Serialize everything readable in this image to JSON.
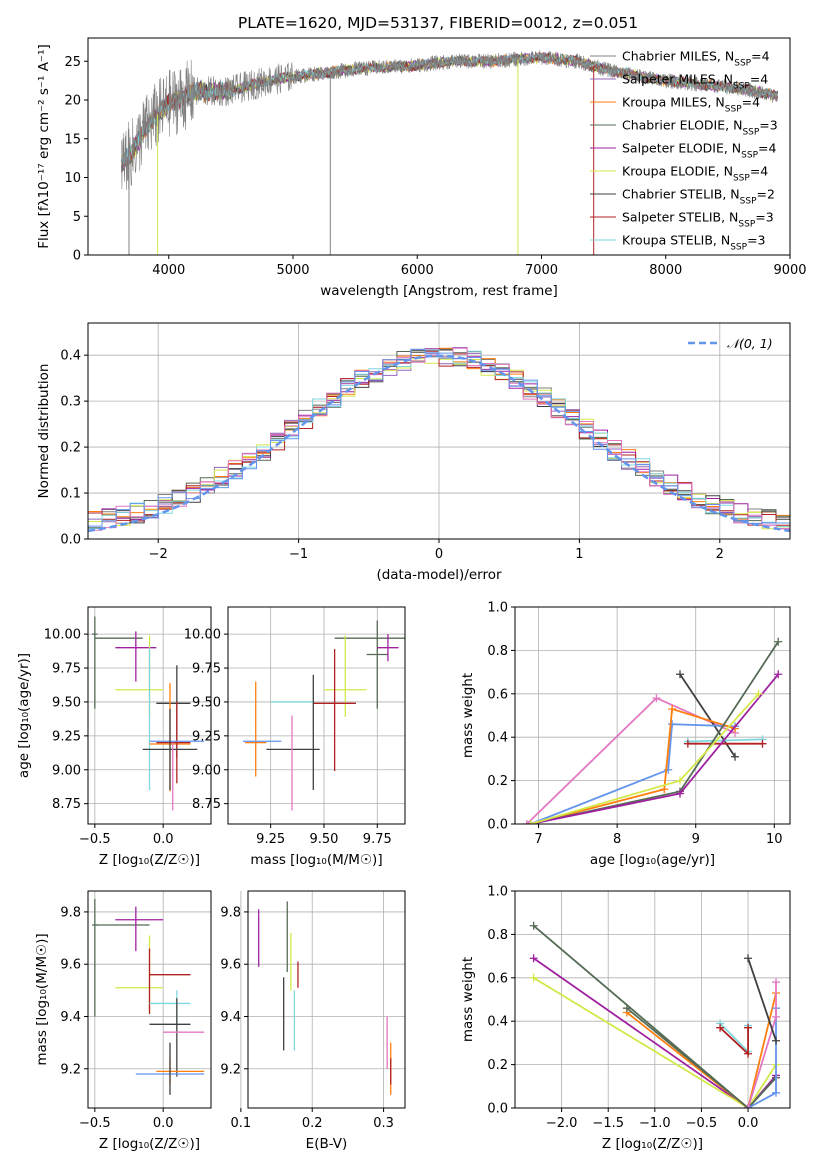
{
  "colors": {
    "Chabrier MILES": "#808080",
    "Salpeter MILES": "#9467bd",
    "Kroupa MILES": "#ff7f0e",
    "Chabrier ELODIE": "#556b55",
    "Salpeter ELODIE": "#a020a0",
    "Kroupa ELODIE": "#d4e84a",
    "Chabrier STELIB": "#404040",
    "Salpeter STELIB": "#b22222",
    "Kroupa STELIB": "#7fd8e0",
    "pink": "#e377c2",
    "blue": "#6495ed"
  },
  "chart_data": [
    {
      "id": "spectrum",
      "type": "line",
      "title": "PLATE=1620, MJD=53137, FIBERID=0012, z=0.051",
      "xlabel": "wavelength [Angstrom, rest frame]",
      "ylabel": "Flux [fλ10⁻¹⁷ erg cm⁻² s⁻¹ A⁻¹]",
      "xlim": [
        3350,
        9000
      ],
      "ylim": [
        0,
        28
      ],
      "xticks": [
        "4000",
        "5000",
        "6000",
        "7000",
        "8000",
        "9000"
      ],
      "yticks": [
        "0",
        "5",
        "10",
        "15",
        "20",
        "25"
      ],
      "continuum": {
        "x": [
          3620,
          3700,
          3800,
          3900,
          4000,
          4200,
          4500,
          4800,
          5000,
          5500,
          6000,
          6300,
          6600,
          7000,
          7300,
          7500,
          7800,
          8000,
          8300,
          8600,
          8900
        ],
        "y": [
          12,
          13,
          16,
          18,
          19.5,
          21,
          21.2,
          22.5,
          23,
          24,
          24.5,
          25,
          25,
          25.5,
          25,
          24,
          23,
          22.5,
          22,
          21.5,
          20.5
        ]
      },
      "legend": [
        {
          "label": "Chabrier MILES, N",
          "sub": "SSP",
          "tail": "=4"
        },
        {
          "label": "Salpeter MILES, N",
          "sub": "SSP",
          "tail": "=4"
        },
        {
          "label": "Kroupa MILES, N",
          "sub": "SSP",
          "tail": "=4"
        },
        {
          "label": "Chabrier ELODIE, N",
          "sub": "SSP",
          "tail": "=3"
        },
        {
          "label": "Salpeter ELODIE, N",
          "sub": "SSP",
          "tail": "=4"
        },
        {
          "label": "Kroupa ELODIE, N",
          "sub": "SSP",
          "tail": "=4"
        },
        {
          "label": "Chabrier STELIB, N",
          "sub": "SSP",
          "tail": "=2"
        },
        {
          "label": "Salpeter STELIB, N",
          "sub": "SSP",
          "tail": "=3"
        },
        {
          "label": "Kroupa STELIB, N",
          "sub": "SSP",
          "tail": "=3"
        }
      ]
    },
    {
      "id": "residuals",
      "type": "line",
      "xlabel": "(data-model)/error",
      "ylabel": "Normed distribution",
      "xlim": [
        -2.5,
        2.5
      ],
      "ylim": [
        0,
        0.47
      ],
      "xticks": [
        "−2",
        "−1",
        "0",
        "1",
        "2"
      ],
      "yticks": [
        "0.0",
        "0.1",
        "0.2",
        "0.3",
        "0.4"
      ],
      "legend": "𝒩(0, 1)",
      "gaussian": {
        "mu": 0,
        "sigma": 1
      }
    },
    {
      "id": "age_vs_Z",
      "type": "scatter",
      "xlabel": "Z [log₁₀(Z/Z☉)]",
      "ylabel": "age  [log₁₀(age/yr)]",
      "xlim": [
        -0.55,
        0.35
      ],
      "ylim": [
        8.6,
        10.2
      ],
      "xticks": [
        "−0.5",
        "0.0"
      ],
      "yticks": [
        "8.75",
        "9.00",
        "9.25",
        "9.50",
        "9.75",
        "10.00"
      ],
      "points": [
        {
          "x": -0.5,
          "xe": [
            0.02,
            0.02
          ],
          "y": 10.0,
          "ye": [
            0.55,
            0.13
          ],
          "color": "Chabrier ELODIE"
        },
        {
          "x": -0.5,
          "xe": [
            0.0,
            0.35
          ],
          "y": 9.97,
          "ye": [
            0,
            0
          ],
          "color": "Chabrier ELODIE"
        },
        {
          "x": -0.2,
          "xe": [
            0.15,
            0.15
          ],
          "y": 9.9,
          "ye": [
            0.25,
            0.12
          ],
          "color": "Salpeter ELODIE"
        },
        {
          "x": -0.1,
          "xe": [
            0.25,
            0.1
          ],
          "y": 9.59,
          "ye": [
            0.2,
            0.4
          ],
          "color": "Kroupa ELODIE"
        },
        {
          "x": -0.1,
          "xe": [
            0.0,
            0.0
          ],
          "y": 9.3,
          "ye": [
            0.45,
            0.6
          ],
          "color": "Kroupa STELIB"
        },
        {
          "x": 0.1,
          "xe": [
            0.15,
            0.1
          ],
          "y": 9.49,
          "ye": [
            0.4,
            0.28
          ],
          "color": "Chabrier STELIB"
        },
        {
          "x": 0.05,
          "xe": [
            0.15,
            0.15
          ],
          "y": 9.19,
          "ye": [
            0.35,
            0.45
          ],
          "color": "Kroupa MILES"
        },
        {
          "x": 0.1,
          "xe": [
            0.15,
            0.1
          ],
          "y": 9.2,
          "ye": [
            0.3,
            0.3
          ],
          "color": "Salpeter STELIB"
        },
        {
          "x": 0.1,
          "xe": [
            0.2,
            0.2
          ],
          "y": 9.21,
          "ye": [
            0,
            0
          ],
          "color": "blue"
        },
        {
          "x": 0.05,
          "xe": [
            0.2,
            0.2
          ],
          "y": 9.15,
          "ye": [
            0.3,
            0.3
          ],
          "color": "Chabrier STELIB"
        },
        {
          "x": 0.07,
          "xe": [
            0,
            0
          ],
          "y": 9.1,
          "ye": [
            0.4,
            0.1
          ],
          "color": "pink"
        }
      ]
    },
    {
      "id": "age_vs_mass",
      "type": "scatter",
      "xlabel": "mass [log₁₀(M/M☉)]",
      "xlim": [
        9.05,
        9.88
      ],
      "ylim": [
        8.6,
        10.2
      ],
      "xticks": [
        "9.25",
        "9.50",
        "9.75"
      ],
      "yticks": [
        "8.75",
        "9.00",
        "9.25",
        "9.50",
        "9.75",
        "10.00"
      ],
      "points": [
        {
          "x": 9.75,
          "xe": [
            0.2,
            0.15
          ],
          "y": 9.97,
          "ye": [
            0,
            0
          ],
          "color": "Chabrier ELODIE"
        },
        {
          "x": 9.75,
          "xe": [
            0.05,
            0.05
          ],
          "y": 9.85,
          "ye": [
            0.4,
            0.25
          ],
          "color": "Chabrier ELODIE"
        },
        {
          "x": 9.8,
          "xe": [
            0.05,
            0.05
          ],
          "y": 9.9,
          "ye": [
            0.1,
            0.1
          ],
          "color": "Salpeter ELODIE"
        },
        {
          "x": 9.6,
          "xe": [
            0.1,
            0.1
          ],
          "y": 9.59,
          "ye": [
            0.2,
            0.4
          ],
          "color": "Kroupa ELODIE"
        },
        {
          "x": 9.55,
          "xe": [
            0,
            0
          ],
          "y": 9.49,
          "ye": [
            0.5,
            0.4
          ],
          "color": "Salpeter STELIB"
        },
        {
          "x": 9.55,
          "xe": [
            0.1,
            0.1
          ],
          "y": 9.49,
          "ye": [
            0,
            0
          ],
          "color": "Salpeter STELIB"
        },
        {
          "x": 9.35,
          "xe": [
            0.1,
            0.1
          ],
          "y": 9.5,
          "ye": [
            0,
            0
          ],
          "color": "Kroupa STELIB"
        },
        {
          "x": 9.45,
          "xe": [
            0,
            0
          ],
          "y": 9.3,
          "ye": [
            0.45,
            0.4
          ],
          "color": "Chabrier STELIB"
        },
        {
          "x": 9.38,
          "xe": [
            0.15,
            0.1
          ],
          "y": 9.15,
          "ye": [
            0,
            0
          ],
          "color": "Chabrier STELIB"
        },
        {
          "x": 9.18,
          "xe": [
            0.05,
            0.05
          ],
          "y": 9.2,
          "ye": [
            0.25,
            0.45
          ],
          "color": "Kroupa MILES"
        },
        {
          "x": 9.2,
          "xe": [
            0.08,
            0.1
          ],
          "y": 9.21,
          "ye": [
            0,
            0
          ],
          "color": "blue"
        },
        {
          "x": 9.35,
          "xe": [
            0,
            0
          ],
          "y": 9.1,
          "ye": [
            0.4,
            0.3
          ],
          "color": "pink"
        }
      ]
    },
    {
      "id": "weight_vs_age",
      "type": "line",
      "xlabel": "age  [log₁₀(age/yr)]",
      "ylabel": "mass weight",
      "xlim": [
        6.7,
        10.2
      ],
      "ylim": [
        0,
        1.0
      ],
      "xticks": [
        "7",
        "8",
        "9",
        "10"
      ],
      "yticks": [
        "0.0",
        "0.2",
        "0.4",
        "0.6",
        "0.8",
        "1.0"
      ],
      "series": [
        {
          "color": "pink",
          "x": [
            6.85,
            8.5,
            9.5
          ],
          "y": [
            0.0,
            0.58,
            0.42
          ]
        },
        {
          "color": "Chabrier STELIB",
          "x": [
            8.8,
            9.5
          ],
          "y": [
            0.69,
            0.31
          ]
        },
        {
          "color": "blue",
          "x": [
            6.9,
            8.65,
            8.7,
            9.5
          ],
          "y": [
            0.0,
            0.25,
            0.46,
            0.45
          ]
        },
        {
          "color": "Kroupa MILES",
          "x": [
            6.9,
            8.6,
            8.7,
            9.5
          ],
          "y": [
            0.0,
            0.16,
            0.53,
            0.44
          ]
        },
        {
          "color": "Kroupa STELIB",
          "x": [
            8.9,
            9.85
          ],
          "y": [
            0.38,
            0.39
          ]
        },
        {
          "color": "Salpeter STELIB",
          "x": [
            8.9,
            9.85
          ],
          "y": [
            0.37,
            0.37
          ]
        },
        {
          "color": "Chabrier ELODIE",
          "x": [
            6.9,
            8.8,
            10.05
          ],
          "y": [
            0.0,
            0.15,
            0.84
          ]
        },
        {
          "color": "Salpeter ELODIE",
          "x": [
            6.9,
            8.8,
            10.05
          ],
          "y": [
            0.0,
            0.14,
            0.69
          ]
        },
        {
          "color": "Kroupa ELODIE",
          "x": [
            6.9,
            8.8,
            9.8
          ],
          "y": [
            0.0,
            0.2,
            0.6
          ]
        }
      ]
    },
    {
      "id": "mass_vs_Z",
      "type": "scatter",
      "xlabel": "Z [log₁₀(Z/Z☉)]",
      "ylabel": "mass [log₁₀(M/M☉)]",
      "xlim": [
        -0.55,
        0.35
      ],
      "ylim": [
        9.05,
        9.88
      ],
      "xticks": [
        "−0.5",
        "0.0"
      ],
      "yticks": [
        "9.2",
        "9.4",
        "9.6",
        "9.8"
      ],
      "points": [
        {
          "x": -0.5,
          "xe": [
            0.02,
            0.02
          ],
          "y": 9.75,
          "ye": [
            0.35,
            0.1
          ],
          "color": "Chabrier ELODIE"
        },
        {
          "x": -0.5,
          "xe": [
            0,
            0.4
          ],
          "y": 9.75,
          "ye": [
            0,
            0
          ],
          "color": "Chabrier ELODIE"
        },
        {
          "x": -0.2,
          "xe": [
            0.15,
            0.2
          ],
          "y": 9.77,
          "ye": [
            0.12,
            0.05
          ],
          "color": "Salpeter ELODIE"
        },
        {
          "x": -0.1,
          "xe": [
            0.25,
            0.1
          ],
          "y": 9.51,
          "ye": [
            0.1,
            0.2
          ],
          "color": "Kroupa ELODIE"
        },
        {
          "x": -0.1,
          "xe": [
            0.0,
            0.0
          ],
          "y": 9.56,
          "ye": [
            0.15,
            0.1
          ],
          "color": "Salpeter STELIB"
        },
        {
          "x": 0.1,
          "xe": [
            0.2,
            0.1
          ],
          "y": 9.56,
          "ye": [
            0,
            0
          ],
          "color": "Salpeter STELIB"
        },
        {
          "x": 0.1,
          "xe": [
            0.2,
            0.1
          ],
          "y": 9.45,
          "ye": [
            0.1,
            0.05
          ],
          "color": "Kroupa STELIB"
        },
        {
          "x": 0.1,
          "xe": [
            0.2,
            0.1
          ],
          "y": 9.37,
          "ye": [
            0.2,
            0.1
          ],
          "color": "Chabrier STELIB"
        },
        {
          "x": 0.15,
          "xe": [
            0.15,
            0.15
          ],
          "y": 9.34,
          "ye": [
            0,
            0
          ],
          "color": "pink"
        },
        {
          "x": 0.05,
          "xe": [
            0.1,
            0.25
          ],
          "y": 9.19,
          "ye": [
            0.05,
            0.05
          ],
          "color": "Kroupa MILES"
        },
        {
          "x": 0.0,
          "xe": [
            0.2,
            0.3
          ],
          "y": 9.18,
          "ye": [
            0,
            0
          ],
          "color": "blue"
        },
        {
          "x": 0.05,
          "xe": [
            0,
            0
          ],
          "y": 9.2,
          "ye": [
            0.1,
            0.1
          ],
          "color": "Chabrier STELIB"
        }
      ]
    },
    {
      "id": "mass_vs_ebv",
      "type": "scatter",
      "xlabel": "E(B-V)",
      "xlim": [
        0.11,
        0.33
      ],
      "ylim": [
        9.05,
        9.88
      ],
      "xticks": [
        "0.1",
        "0.2",
        "0.3"
      ],
      "yticks": [
        "9.2",
        "9.4",
        "9.6",
        "9.8"
      ],
      "points": [
        {
          "x": 0.125,
          "xe": [
            0,
            0
          ],
          "y": 9.71,
          "ye": [
            0.12,
            0.1
          ],
          "color": "Salpeter ELODIE"
        },
        {
          "x": 0.165,
          "xe": [
            0,
            0
          ],
          "y": 9.72,
          "ye": [
            0.15,
            0.12
          ],
          "color": "Chabrier ELODIE"
        },
        {
          "x": 0.16,
          "xe": [
            0,
            0
          ],
          "y": 9.4,
          "ye": [
            0.13,
            0.15
          ],
          "color": "Chabrier STELIB"
        },
        {
          "x": 0.17,
          "xe": [
            0,
            0
          ],
          "y": 9.6,
          "ye": [
            0.1,
            0.12
          ],
          "color": "Kroupa ELODIE"
        },
        {
          "x": 0.18,
          "xe": [
            0,
            0
          ],
          "y": 9.56,
          "ye": [
            0.05,
            0.05
          ],
          "color": "Salpeter STELIB"
        },
        {
          "x": 0.175,
          "xe": [
            0,
            0
          ],
          "y": 9.4,
          "ye": [
            0.13,
            0.1
          ],
          "color": "Kroupa STELIB"
        },
        {
          "x": 0.305,
          "xe": [
            0,
            0
          ],
          "y": 9.3,
          "ye": [
            0.1,
            0.1
          ],
          "color": "pink"
        },
        {
          "x": 0.31,
          "xe": [
            0,
            0
          ],
          "y": 9.2,
          "ye": [
            0.1,
            0.1
          ],
          "color": "Kroupa MILES"
        },
        {
          "x": 0.31,
          "xe": [
            0,
            0
          ],
          "y": 9.19,
          "ye": [
            0.05,
            0.05
          ],
          "color": "Salpeter STELIB"
        }
      ]
    },
    {
      "id": "weight_vs_Z",
      "type": "line",
      "xlabel": "Z [log₁₀(Z/Z☉)]",
      "ylabel": "mass weight",
      "xlim": [
        -2.5,
        0.45
      ],
      "ylim": [
        0,
        1.0
      ],
      "xticks": [
        "−2.0",
        "−1.5",
        "−1.0",
        "−0.5",
        "0.0"
      ],
      "yticks": [
        "0.0",
        "0.2",
        "0.4",
        "0.6",
        "0.8",
        "1.0"
      ],
      "series": [
        {
          "color": "Chabrier ELODIE",
          "x": [
            -2.3,
            0.0,
            0.3
          ],
          "y": [
            0.84,
            0.0,
            0.14
          ]
        },
        {
          "color": "Salpeter ELODIE",
          "x": [
            -2.3,
            0.0,
            0.3
          ],
          "y": [
            0.69,
            0.0,
            0.15
          ]
        },
        {
          "color": "Kroupa ELODIE",
          "x": [
            -2.3,
            0.0,
            0.3
          ],
          "y": [
            0.6,
            0.0,
            0.2
          ]
        },
        {
          "color": "Kroupa MILES",
          "x": [
            -1.3,
            0.0,
            0.3
          ],
          "y": [
            0.44,
            0.0,
            0.53
          ]
        },
        {
          "color": "Chabrier ELODIE",
          "x": [
            -1.3,
            0.0,
            0.3
          ],
          "y": [
            0.46,
            0.0,
            0.14
          ]
        },
        {
          "color": "blue",
          "x": [
            0.0,
            0.3,
            0.3
          ],
          "y": [
            0.0,
            0.07,
            0.46
          ]
        },
        {
          "color": "pink",
          "x": [
            0.0,
            0.3,
            0.3
          ],
          "y": [
            0.0,
            0.42,
            0.58
          ]
        },
        {
          "color": "Chabrier STELIB",
          "x": [
            0.0,
            0.3
          ],
          "y": [
            0.69,
            0.31
          ]
        },
        {
          "color": "Kroupa STELIB",
          "x": [
            -0.3,
            0.0,
            0.0
          ],
          "y": [
            0.39,
            0.26,
            0.38
          ]
        },
        {
          "color": "Salpeter STELIB",
          "x": [
            -0.3,
            0.0,
            0.0
          ],
          "y": [
            0.37,
            0.25,
            0.37
          ]
        }
      ]
    }
  ]
}
